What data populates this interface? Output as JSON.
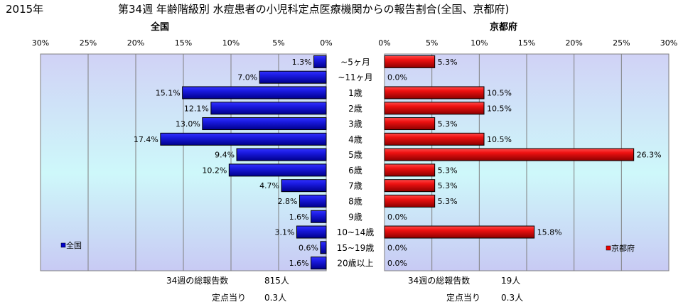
{
  "header": {
    "year": "2015年",
    "title": "第34週 年齢階級別 水痘患者の小児科定点医療機関からの報告割合(全国、京都府)"
  },
  "chart_data": {
    "type": "bar",
    "categories": [
      "~5ヶ月",
      "~11ヶ月",
      "1歳",
      "2歳",
      "3歳",
      "4歳",
      "5歳",
      "6歳",
      "7歳",
      "8歳",
      "9歳",
      "10~14歳",
      "15~19歳",
      "20歳以上"
    ],
    "axis_ticks": [
      "0%",
      "5%",
      "10%",
      "15%",
      "20%",
      "25%",
      "30%"
    ],
    "xlim": [
      0,
      30
    ],
    "grid": true,
    "panels": [
      {
        "id": "left",
        "subtitle": "全国",
        "legend": "全国",
        "legend_position": "bottom-left",
        "color": "#0000cc",
        "values": [
          1.3,
          7.0,
          15.1,
          12.1,
          13.0,
          17.4,
          9.4,
          10.2,
          4.7,
          2.8,
          1.6,
          3.1,
          0.6,
          1.6
        ],
        "labels": [
          "1.3%",
          "7.0%",
          "15.1%",
          "12.1%",
          "13.0%",
          "17.4%",
          "9.4%",
          "10.2%",
          "4.7%",
          "2.8%",
          "1.6%",
          "3.1%",
          "0.6%",
          "1.6%"
        ]
      },
      {
        "id": "right",
        "subtitle": "京都府",
        "legend": "京都府",
        "legend_position": "bottom-right",
        "color": "#ee0000",
        "values": [
          5.3,
          0.0,
          10.5,
          10.5,
          5.3,
          10.5,
          26.3,
          5.3,
          5.3,
          5.3,
          0.0,
          15.8,
          0.0,
          0.0
        ],
        "labels": [
          "5.3%",
          "0.0%",
          "10.5%",
          "10.5%",
          "5.3%",
          "10.5%",
          "26.3%",
          "5.3%",
          "5.3%",
          "5.3%",
          "0.0%",
          "15.8%",
          "0.0%",
          "0.0%"
        ]
      }
    ]
  },
  "footer": {
    "left": {
      "total_label": "34週の総報告数",
      "total_value": "815人",
      "per_label": "定点当り",
      "per_value": "0.3人"
    },
    "right": {
      "total_label": "34週の総報告数",
      "total_value": "19人",
      "per_label": "定点当り",
      "per_value": "0.3人"
    }
  }
}
